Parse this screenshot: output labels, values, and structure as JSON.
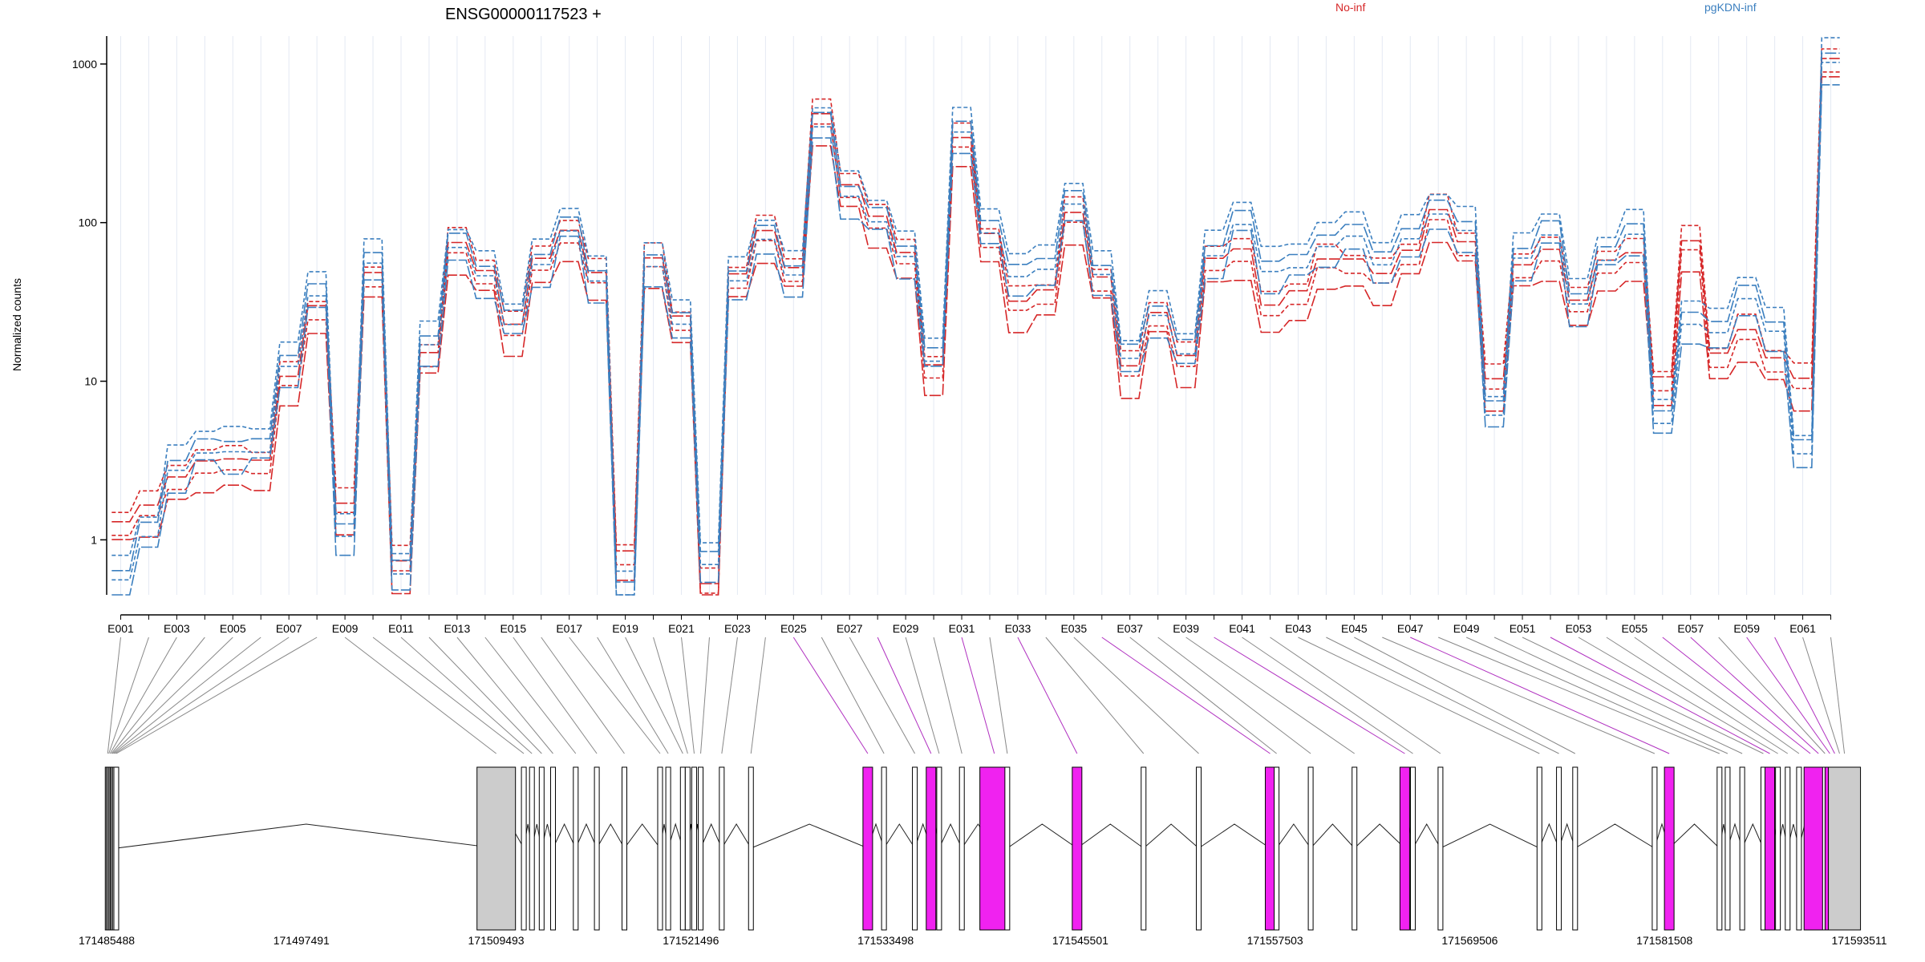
{
  "title": "ENSG00000117523 +",
  "legend": [
    {
      "name": "No-inf",
      "color": "#d62728"
    },
    {
      "name": "pgKDN-inf",
      "color": "#3b7fbf"
    }
  ],
  "ylabel": "Normalized counts",
  "chart_data": {
    "type": "line",
    "yscale": "log",
    "ylim": [
      0.45,
      1500
    ],
    "yticks": [
      1,
      10,
      100,
      1000
    ],
    "ytick_labels": [
      "1",
      "10",
      "100",
      "1000"
    ],
    "exons": [
      "E001",
      "E002",
      "E003",
      "E004",
      "E005",
      "E006",
      "E007",
      "E008",
      "E009",
      "E010",
      "E011",
      "E012",
      "E013",
      "E014",
      "E015",
      "E016",
      "E017",
      "E018",
      "E019",
      "E020",
      "E021",
      "E022",
      "E023",
      "E024",
      "E025",
      "E026",
      "E027",
      "E028",
      "E029",
      "E030",
      "E031",
      "E032",
      "E033",
      "E034",
      "E035",
      "E036",
      "E037",
      "E038",
      "E039",
      "E040",
      "E041",
      "E042",
      "E043",
      "E044",
      "E045",
      "E046",
      "E047",
      "E048",
      "E049",
      "E050",
      "E051",
      "E052",
      "E053",
      "E054",
      "E055",
      "E056",
      "E057",
      "E058",
      "E059",
      "E060",
      "E061",
      "E062"
    ],
    "tick_labels": [
      "E001",
      "E003",
      "E005",
      "E007",
      "E009",
      "E011",
      "E013",
      "E015",
      "E017",
      "E019",
      "E021",
      "E023",
      "E025",
      "E027",
      "E029",
      "E031",
      "E033",
      "E035",
      "E037",
      "E039",
      "E041",
      "E043",
      "E045",
      "E047",
      "E049",
      "E051",
      "E053",
      "E055",
      "E057",
      "E059",
      "E061"
    ],
    "group_means": {
      "No-inf": [
        1.2,
        1.6,
        2.3,
        3.0,
        3.0,
        3.0,
        10,
        28,
        1.6,
        45,
        0.7,
        14,
        72,
        46,
        22,
        55,
        85,
        45,
        0.8,
        56,
        24,
        0.5,
        44,
        85,
        48,
        470,
        160,
        105,
        60,
        12,
        320,
        80,
        30,
        35,
        110,
        42,
        12,
        25,
        14,
        55,
        65,
        28,
        35,
        55,
        55,
        45,
        62,
        115,
        70,
        10,
        50,
        65,
        30,
        55,
        60,
        10,
        72,
        14,
        20,
        13,
        10,
        1000
      ],
      "pgKDN-inf": [
        0.6,
        1.2,
        3.0,
        4.0,
        4.0,
        4.0,
        14,
        38,
        1.2,
        60,
        0.7,
        18,
        80,
        50,
        26,
        60,
        100,
        48,
        0.5,
        60,
        25,
        0.8,
        46,
        90,
        50,
        460,
        160,
        115,
        68,
        15,
        420,
        95,
        52,
        55,
        150,
        50,
        16,
        28,
        17,
        68,
        110,
        55,
        58,
        80,
        90,
        62,
        85,
        130,
        95,
        7,
        65,
        95,
        34,
        65,
        95,
        6,
        26,
        22,
        38,
        22,
        4,
        1100
      ]
    },
    "replicate_factors": [
      0.6,
      0.85,
      1.1,
      1.4
    ],
    "genome_ticks": [
      "171485488",
      "171497491",
      "171509493",
      "171521496",
      "171533498",
      "171545501",
      "171557503",
      "171569506",
      "171581508",
      "171593511"
    ]
  }
}
